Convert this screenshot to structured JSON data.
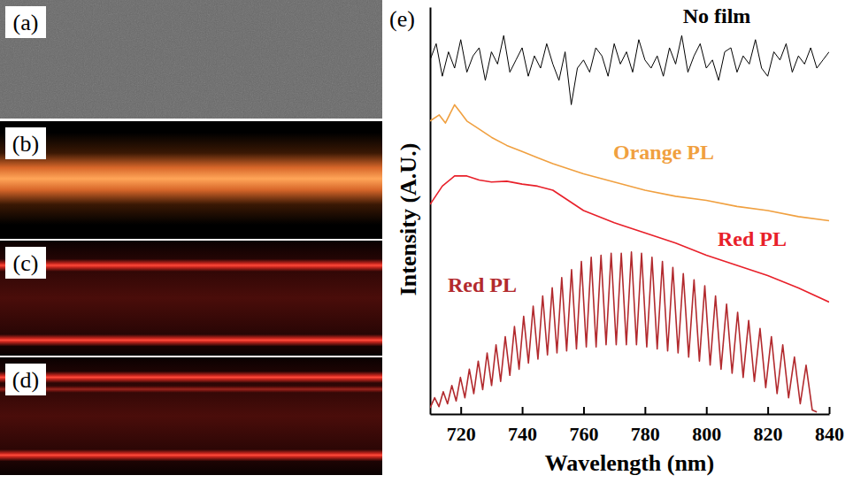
{
  "image_panels": {
    "labels": [
      "(a)",
      "(b)",
      "(c)",
      "(d)"
    ]
  },
  "chart_data": {
    "type": "line",
    "panel_label": "(e)",
    "x_label": "Wavelength (nm)",
    "y_label": "Intensity (A.U.)",
    "xlim": [
      710,
      840
    ],
    "xticks": [
      720,
      740,
      760,
      780,
      800,
      820,
      840
    ],
    "ylim": [
      0,
      100
    ],
    "tick_labels": "x",
    "series": [
      {
        "name": "No film",
        "color": "#000000",
        "x": [
          710,
          712,
          714,
          716,
          718,
          720,
          722,
          724,
          726,
          728,
          730,
          732,
          734,
          736,
          738,
          740,
          742,
          744,
          746,
          748,
          750,
          752,
          754,
          756,
          758,
          760,
          762,
          764,
          766,
          768,
          770,
          772,
          774,
          776,
          778,
          780,
          782,
          784,
          786,
          788,
          790,
          792,
          794,
          796,
          798,
          800,
          802,
          804,
          806,
          808,
          810,
          812,
          814,
          816,
          818,
          820,
          822,
          824,
          826,
          828,
          830,
          832,
          834,
          836,
          838,
          840
        ],
        "values": [
          87,
          91,
          83,
          89,
          85,
          92,
          84,
          88,
          90,
          82,
          89,
          86,
          93,
          84,
          87,
          90,
          83,
          88,
          85,
          91,
          86,
          82,
          89,
          76,
          85,
          87,
          84,
          90,
          88,
          83,
          91,
          86,
          89,
          84,
          92,
          87,
          85,
          88,
          83,
          90,
          86,
          93,
          84,
          88,
          91,
          85,
          87,
          82,
          89,
          90,
          84,
          88,
          86,
          92,
          85,
          83,
          89,
          87,
          91,
          84,
          88,
          86,
          90,
          85,
          87,
          89
        ]
      },
      {
        "name": "Orange PL",
        "color": "#f0a040",
        "x": [
          710,
          713,
          715,
          718,
          720,
          722,
          725,
          730,
          735,
          740,
          745,
          750,
          760,
          770,
          780,
          790,
          800,
          810,
          820,
          830,
          840
        ],
        "values": [
          72,
          73.5,
          71.5,
          76,
          74,
          72,
          70.5,
          68,
          66,
          64.5,
          63,
          61.5,
          59,
          57,
          55,
          53.5,
          52.5,
          51,
          50,
          48.5,
          47.5
        ]
      },
      {
        "name": "Red PL",
        "color": "#e8202a",
        "x": [
          710,
          714,
          718,
          722,
          726,
          730,
          735,
          740,
          745,
          750,
          755,
          760,
          770,
          780,
          790,
          800,
          810,
          820,
          830,
          840
        ],
        "values": [
          51.5,
          56,
          58.5,
          58.5,
          57.5,
          57,
          57.2,
          56.5,
          56,
          55,
          52.5,
          50,
          47,
          44.5,
          42,
          39,
          36.5,
          34,
          31,
          27.5
        ]
      },
      {
        "name": "Red PL",
        "color": "#b22a2e",
        "x": [
          710,
          711.5,
          712.9,
          714.3,
          715.7,
          717.1,
          718.5,
          719.9,
          721.35,
          722.8,
          724.25,
          725.7,
          727.15,
          728.6,
          730.05,
          731.5,
          733,
          734.5,
          736,
          737.5,
          739,
          740.5,
          742.05,
          743.6,
          745.15,
          746.7,
          748.25,
          749.8,
          751.35,
          752.9,
          754.5,
          756.1,
          757.7,
          759.3,
          760.9,
          762.5,
          764.1,
          765.7,
          767.35,
          769,
          770.65,
          772.3,
          773.95,
          775.6,
          777.25,
          778.9,
          780.6,
          782.3,
          784,
          785.7,
          787.4,
          789.1,
          790.8,
          792.5,
          794.25,
          796,
          797.75,
          799.5,
          801.25,
          803,
          804.8,
          806.6,
          808.4,
          810.2,
          812,
          813.8,
          815.65,
          817.5,
          819.35,
          821.2,
          823.05,
          824.9,
          826.8,
          828.7,
          830.6,
          832.5,
          834.5,
          836
        ],
        "values": [
          1.5,
          4,
          1.8,
          5.5,
          2.5,
          7,
          3.2,
          9,
          4,
          11,
          5,
          13,
          6,
          15,
          7,
          17,
          8,
          19,
          9.5,
          21.5,
          11,
          24,
          12.5,
          26.5,
          13.5,
          29,
          14.5,
          31,
          15,
          33.5,
          15.5,
          35.5,
          16,
          37.5,
          16.5,
          38.5,
          16.5,
          39,
          17,
          39.5,
          17,
          39.5,
          17,
          39.8,
          17,
          39.5,
          16.5,
          38.5,
          16,
          37.5,
          15.5,
          36,
          15,
          34.5,
          14,
          33,
          13,
          31.5,
          12,
          29,
          11,
          27,
          10,
          25,
          9,
          23,
          8,
          21,
          6.5,
          19,
          5,
          17,
          4,
          14,
          2.5,
          12,
          1,
          0.5
        ]
      }
    ]
  }
}
